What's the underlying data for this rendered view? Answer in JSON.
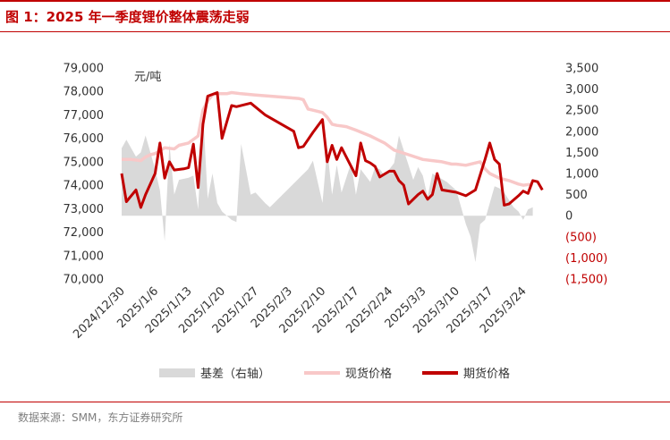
{
  "figure": {
    "title": "图 1：2025 年一季度锂价整体震荡走弱",
    "source": "数据来源：SMM，东方证券研究所"
  },
  "colors": {
    "basis": "#d9d9d9",
    "spot": "#f8c8c8",
    "futures": "#c00000",
    "neg_label": "#c00000",
    "accent": "#c00000"
  },
  "chart_data": {
    "type": "line",
    "unit_label": "元/吨",
    "left_axis": {
      "ylim": [
        70000,
        79000
      ],
      "ticks": [
        "79,000",
        "78,000",
        "77,000",
        "76,000",
        "75,000",
        "74,000",
        "73,000",
        "72,000",
        "71,000",
        "70,000"
      ]
    },
    "right_axis": {
      "ylim": [
        -1500,
        3500
      ],
      "ticks": [
        "3,500",
        "3,000",
        "2,500",
        "2,000",
        "1,500",
        "1,000",
        "500",
        "0",
        "(500)",
        "(1,000)",
        "(1,500)"
      ]
    },
    "x_tick_labels": [
      "2024/12/30",
      "2025/1/6",
      "2025/1/13",
      "2025/1/20",
      "2025/1/27",
      "2025/2/3",
      "2025/2/10",
      "2025/2/17",
      "2025/2/24",
      "2025/3/3",
      "2025/3/10",
      "2025/3/17",
      "2025/3/24"
    ],
    "x_range_days": [
      0,
      90
    ],
    "legend": {
      "placement": "bottom"
    },
    "series": [
      {
        "name": "基差（右轴）",
        "kind": "area",
        "axis": "right",
        "points": [
          [
            0,
            1600
          ],
          [
            1,
            1800
          ],
          [
            3,
            1400
          ],
          [
            4,
            1500
          ],
          [
            5,
            1900
          ],
          [
            6,
            1500
          ],
          [
            7,
            1100
          ],
          [
            8,
            600
          ],
          [
            9,
            -600
          ],
          [
            10,
            1700
          ],
          [
            11,
            500
          ],
          [
            12,
            850
          ],
          [
            14,
            900
          ],
          [
            15,
            950
          ],
          [
            16,
            150
          ],
          [
            17,
            2500
          ],
          [
            18,
            400
          ],
          [
            19,
            1000
          ],
          [
            20,
            300
          ],
          [
            21,
            100
          ],
          [
            22,
            0
          ],
          [
            23,
            -100
          ],
          [
            24,
            -150
          ],
          [
            25,
            1700
          ],
          [
            27,
            500
          ],
          [
            28,
            550
          ],
          [
            30,
            300
          ],
          [
            31,
            200
          ],
          [
            39,
            1100
          ],
          [
            40,
            1300
          ],
          [
            42,
            300
          ],
          [
            43,
            1600
          ],
          [
            44,
            500
          ],
          [
            45,
            1200
          ],
          [
            46,
            550
          ],
          [
            48,
            1250
          ],
          [
            49,
            500
          ],
          [
            50,
            1100
          ],
          [
            52,
            800
          ],
          [
            53,
            1150
          ],
          [
            54,
            1100
          ],
          [
            55,
            950
          ],
          [
            57,
            1250
          ],
          [
            58,
            1900
          ],
          [
            60,
            1200
          ],
          [
            61,
            850
          ],
          [
            62,
            1150
          ],
          [
            63,
            950
          ],
          [
            64,
            450
          ],
          [
            65,
            1000
          ],
          [
            68,
            800
          ],
          [
            70,
            600
          ],
          [
            71,
            200
          ],
          [
            72,
            -200
          ],
          [
            73,
            -500
          ],
          [
            74,
            -1100
          ],
          [
            75,
            -200
          ],
          [
            76,
            -100
          ],
          [
            78,
            700
          ],
          [
            79,
            650
          ],
          [
            80,
            550
          ],
          [
            82,
            200
          ],
          [
            83,
            100
          ],
          [
            84,
            -100
          ],
          [
            85,
            150
          ],
          [
            86,
            200
          ]
        ]
      },
      {
        "name": "现货价格",
        "kind": "line",
        "axis": "left",
        "points": [
          [
            0,
            75100
          ],
          [
            2,
            75100
          ],
          [
            4,
            75050
          ],
          [
            5,
            75200
          ],
          [
            6,
            75300
          ],
          [
            7,
            75350
          ],
          [
            9,
            75600
          ],
          [
            11,
            75550
          ],
          [
            12,
            75700
          ],
          [
            14,
            75800
          ],
          [
            16,
            76100
          ],
          [
            17,
            77200
          ],
          [
            18,
            77600
          ],
          [
            19,
            77850
          ],
          [
            20,
            77900
          ],
          [
            22,
            77900
          ],
          [
            23,
            77950
          ],
          [
            25,
            77900
          ],
          [
            28,
            77850
          ],
          [
            34,
            77750
          ],
          [
            37,
            77700
          ],
          [
            38,
            77650
          ],
          [
            39,
            77250
          ],
          [
            40,
            77200
          ],
          [
            42,
            77100
          ],
          [
            43,
            76900
          ],
          [
            44,
            76600
          ],
          [
            45,
            76550
          ],
          [
            47,
            76500
          ],
          [
            49,
            76350
          ],
          [
            52,
            76100
          ],
          [
            53,
            76000
          ],
          [
            55,
            75800
          ],
          [
            57,
            75500
          ],
          [
            60,
            75300
          ],
          [
            63,
            75100
          ],
          [
            65,
            75050
          ],
          [
            67,
            75000
          ],
          [
            69,
            74900
          ],
          [
            70,
            74900
          ],
          [
            72,
            74850
          ],
          [
            74,
            74950
          ],
          [
            75,
            75000
          ],
          [
            76,
            74700
          ],
          [
            77,
            74500
          ],
          [
            79,
            74300
          ],
          [
            81,
            74200
          ],
          [
            83,
            74050
          ],
          [
            84,
            74000
          ],
          [
            86,
            74050
          ]
        ]
      },
      {
        "name": "期货价格",
        "kind": "line",
        "axis": "left",
        "points": [
          [
            0,
            74500
          ],
          [
            1,
            73300
          ],
          [
            3,
            73800
          ],
          [
            4,
            73050
          ],
          [
            5,
            73600
          ],
          [
            7,
            74500
          ],
          [
            8,
            75800
          ],
          [
            9,
            74300
          ],
          [
            10,
            75000
          ],
          [
            11,
            74650
          ],
          [
            13,
            74700
          ],
          [
            14,
            74750
          ],
          [
            15,
            75750
          ],
          [
            16,
            73900
          ],
          [
            17,
            76600
          ],
          [
            18,
            77800
          ],
          [
            20,
            77950
          ],
          [
            21,
            76000
          ],
          [
            23,
            77400
          ],
          [
            24,
            77350
          ],
          [
            27,
            77500
          ],
          [
            30,
            77000
          ],
          [
            36,
            76300
          ],
          [
            37,
            75600
          ],
          [
            38,
            75650
          ],
          [
            40,
            76250
          ],
          [
            42,
            76800
          ],
          [
            43,
            75000
          ],
          [
            44,
            75700
          ],
          [
            45,
            75100
          ],
          [
            46,
            75600
          ],
          [
            48,
            74800
          ],
          [
            49,
            74400
          ],
          [
            50,
            75800
          ],
          [
            51,
            75050
          ],
          [
            52,
            74950
          ],
          [
            53,
            74800
          ],
          [
            54,
            74350
          ],
          [
            56,
            74600
          ],
          [
            57,
            74600
          ],
          [
            58,
            74200
          ],
          [
            59,
            74000
          ],
          [
            60,
            73200
          ],
          [
            62,
            73600
          ],
          [
            63,
            73750
          ],
          [
            64,
            73400
          ],
          [
            65,
            73600
          ],
          [
            66,
            74500
          ],
          [
            67,
            73800
          ],
          [
            70,
            73700
          ],
          [
            72,
            73550
          ],
          [
            74,
            73800
          ],
          [
            76,
            75100
          ],
          [
            77,
            75800
          ],
          [
            78,
            75100
          ],
          [
            79,
            74900
          ],
          [
            80,
            73150
          ],
          [
            81,
            73200
          ],
          [
            83,
            73550
          ],
          [
            84,
            73750
          ],
          [
            85,
            73650
          ],
          [
            86,
            74200
          ],
          [
            87,
            74150
          ],
          [
            88,
            73800
          ]
        ]
      }
    ]
  }
}
